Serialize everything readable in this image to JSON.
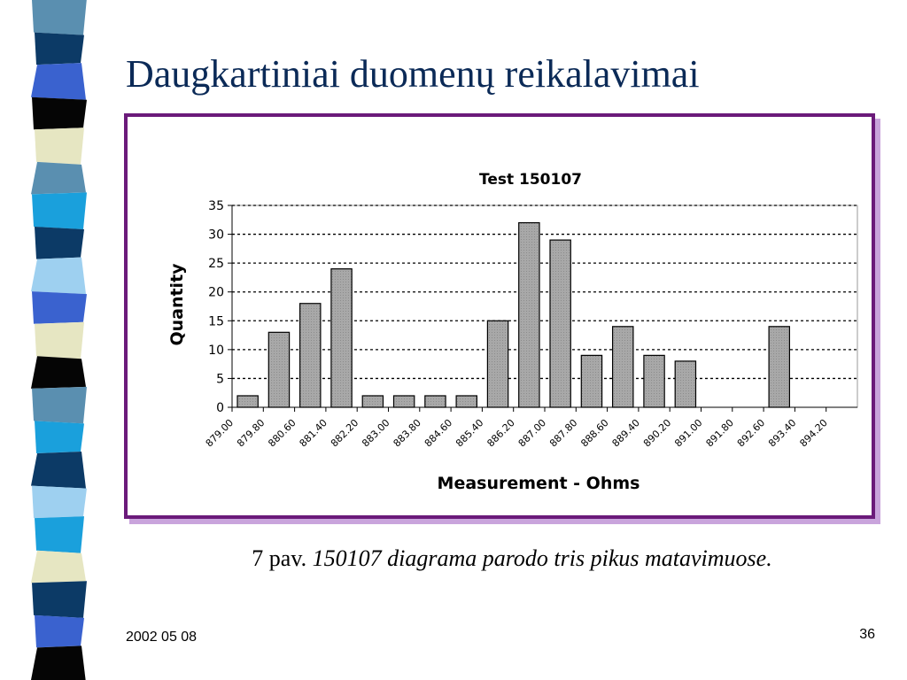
{
  "slide": {
    "title": "Daugkartiniai duomenų reikalavimai",
    "caption_prefix": "7 pav.",
    "caption_text": "150107 diagrama parodo tris pikus matavimuose.",
    "footer_date": "2002 05 08",
    "page_number": "36"
  },
  "strip_colors": [
    "#5a8fb0",
    "#0c3a66",
    "#3a62cf",
    "#050505",
    "#e6e6c2",
    "#5a8fb0",
    "#1aa0dc",
    "#0c3a66",
    "#9ed0f0",
    "#3a62cf",
    "#e6e6c2",
    "#050505",
    "#5a8fb0",
    "#1aa0dc",
    "#0c3a66",
    "#9ed0f0",
    "#1aa0dc",
    "#e6e6c2",
    "#0c3a66",
    "#3a62cf",
    "#050505"
  ],
  "chart_data": {
    "type": "bar",
    "title": "Test 150107",
    "xlabel": "Measurement - Ohms",
    "ylabel": "Quantity",
    "ylim": [
      0,
      35
    ],
    "yticks": [
      0,
      5,
      10,
      15,
      20,
      25,
      30,
      35
    ],
    "grid": true,
    "categories": [
      "879.00",
      "879.80",
      "880.60",
      "881.40",
      "882.20",
      "883.00",
      "883.80",
      "884.60",
      "885.40",
      "886.20",
      "887.00",
      "887.80",
      "888.60",
      "889.40",
      "890.20",
      "891.00",
      "891.80",
      "892.60",
      "893.40",
      "894.20"
    ],
    "values": [
      2,
      13,
      18,
      24,
      2,
      2,
      2,
      2,
      15,
      32,
      29,
      9,
      14,
      9,
      8,
      0,
      0,
      14,
      0,
      0
    ],
    "bar_color": "#a8a8a8"
  }
}
